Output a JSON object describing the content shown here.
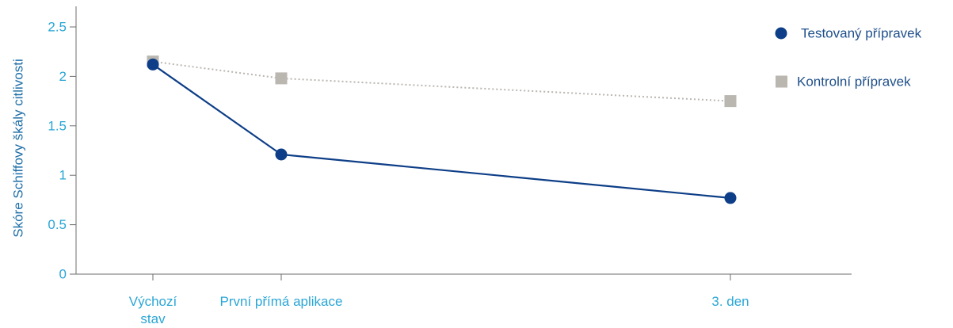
{
  "chart_data": {
    "type": "line",
    "title": "",
    "xlabel": "",
    "ylabel": "Skóre Schiffovy škály citlivosti",
    "categories": [
      [
        "Výchozí",
        "stav"
      ],
      [
        "První přímá aplikace"
      ],
      [
        "3. den"
      ]
    ],
    "x_positions": [
      0,
      1,
      4.5
    ],
    "ylim": [
      0,
      2.5
    ],
    "yticks": [
      "0",
      "0.5",
      "1",
      "1.5",
      "2",
      "2.5"
    ],
    "ytick_values": [
      0,
      0.5,
      1,
      1.5,
      2,
      2.5
    ],
    "grid": false,
    "legend_position": "top-right",
    "series": [
      {
        "name": "Testovaný přípravek",
        "values": [
          2.12,
          1.21,
          0.77
        ],
        "color": "#0d3e87",
        "marker": "circle",
        "line": "solid"
      },
      {
        "name": "Kontrolní přípravek",
        "values": [
          2.15,
          1.98,
          1.75
        ],
        "color": "#bab6b0",
        "marker": "square",
        "line": "dotted"
      }
    ],
    "colors": {
      "axis": "#6e6e6e",
      "tick_text": "#2aa6d6",
      "ylabel_text": "#1e6fa8",
      "legend_text": "#1e4f8a"
    }
  }
}
